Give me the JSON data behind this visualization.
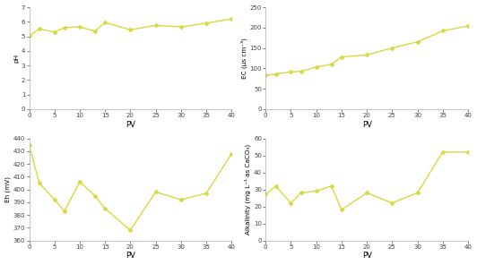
{
  "ph": {
    "x": [
      0,
      2,
      5,
      7,
      10,
      13,
      15,
      20,
      25,
      30,
      35,
      40
    ],
    "y": [
      5.05,
      5.5,
      5.3,
      5.6,
      5.65,
      5.35,
      5.95,
      5.45,
      5.75,
      5.65,
      5.9,
      6.2
    ],
    "xlabel": "PV",
    "ylabel": "pH",
    "ylim": [
      0,
      7
    ],
    "yticks": [
      0,
      1,
      2,
      3,
      4,
      5,
      6,
      7
    ]
  },
  "ec": {
    "x": [
      0,
      2,
      5,
      7,
      10,
      13,
      15,
      20,
      25,
      30,
      35,
      40
    ],
    "y": [
      83,
      86,
      91,
      93,
      103,
      110,
      128,
      133,
      150,
      165,
      192,
      204
    ],
    "xlabel": "PV",
    "ylabel": "EC (μs cm⁻³)",
    "ylim": [
      0,
      250
    ],
    "yticks": [
      0,
      50,
      100,
      150,
      200,
      250
    ]
  },
  "eh": {
    "x": [
      0,
      2,
      5,
      7,
      10,
      13,
      15,
      20,
      25,
      30,
      35,
      40
    ],
    "y": [
      435,
      405,
      392,
      383,
      406,
      395,
      385,
      368,
      398,
      392,
      397,
      428
    ],
    "xlabel": "PV",
    "ylabel": "Eh (mV)",
    "ylim": [
      360,
      440
    ],
    "yticks": [
      360,
      370,
      380,
      390,
      400,
      410,
      420,
      430,
      440
    ]
  },
  "alk": {
    "x": [
      0,
      2,
      5,
      7,
      10,
      13,
      15,
      20,
      25,
      30,
      35,
      40
    ],
    "y": [
      27,
      32,
      22,
      28,
      29,
      32,
      18,
      28,
      22,
      28,
      52,
      52
    ],
    "xlabel": "PV",
    "ylabel": "Alkalinity (mg L⁻¹ as CaCO₃)",
    "ylim": [
      0,
      60
    ],
    "yticks": [
      0,
      10,
      20,
      30,
      40,
      50,
      60
    ]
  },
  "line_color": "#d8d840",
  "marker": "D",
  "markersize": 2.5,
  "linewidth": 1.0,
  "bg_color": "#ffffff",
  "fig_bg_color": "#ffffff",
  "spine_color": "#bbbbbb",
  "xticks": [
    0,
    5,
    10,
    15,
    20,
    25,
    30,
    35,
    40
  ]
}
